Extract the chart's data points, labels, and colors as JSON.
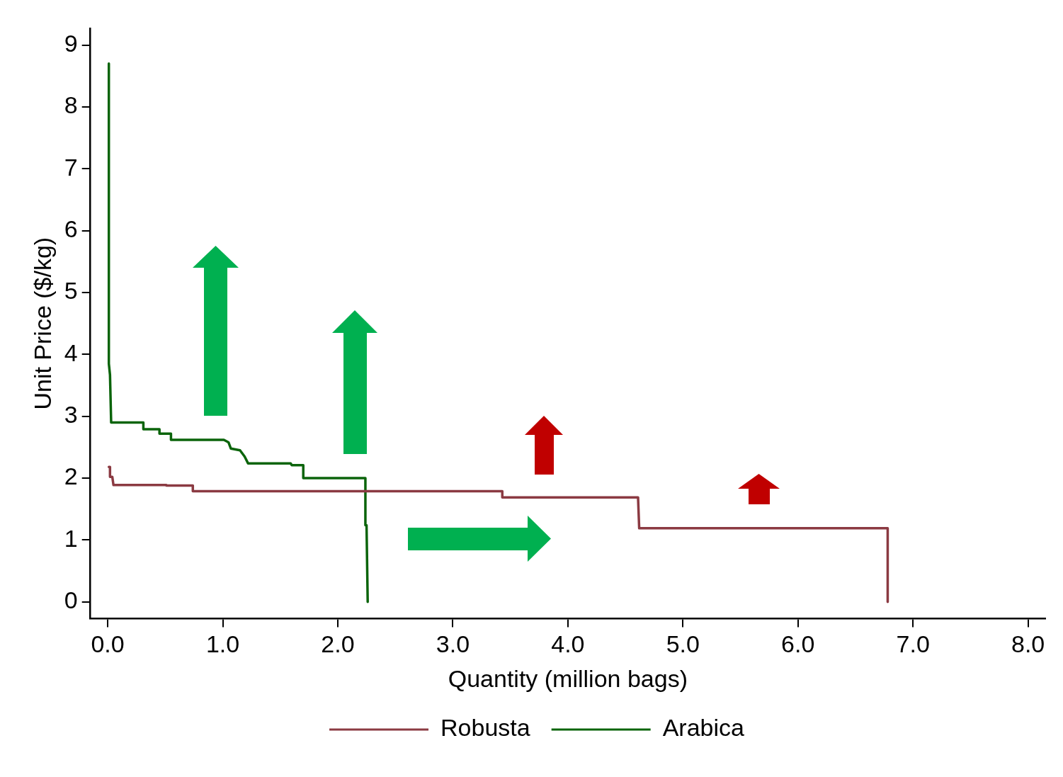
{
  "chart_data": {
    "type": "line",
    "xlabel": "Quantity (million bags)",
    "ylabel": "Unit Price ($/kg)",
    "xlim": [
      -0.15,
      8.15
    ],
    "ylim": [
      -0.27,
      9.27
    ],
    "xticks": [
      {
        "value": 0,
        "label": "0.0"
      },
      {
        "value": 1,
        "label": "1.0"
      },
      {
        "value": 2,
        "label": "2.0"
      },
      {
        "value": 3,
        "label": "3.0"
      },
      {
        "value": 4,
        "label": "4.0"
      },
      {
        "value": 5,
        "label": "5.0"
      },
      {
        "value": 6,
        "label": "6.0"
      },
      {
        "value": 7,
        "label": "7.0"
      },
      {
        "value": 8,
        "label": "8.0"
      }
    ],
    "yticks": [
      0,
      1,
      2,
      3,
      4,
      5,
      6,
      7,
      8,
      9
    ],
    "series": [
      {
        "name": "Robusta",
        "color": "#8b3a42",
        "x": [
          0.01,
          0.02,
          0.02,
          0.04,
          0.05,
          0.51,
          0.51,
          0.74,
          0.74,
          3.43,
          3.43,
          4.61,
          4.62,
          6.78,
          6.78
        ],
        "values": [
          2.18,
          2.18,
          2.02,
          2.02,
          1.89,
          1.89,
          1.88,
          1.88,
          1.79,
          1.79,
          1.69,
          1.69,
          1.19,
          1.19,
          0
        ]
      },
      {
        "name": "Arabica",
        "color": "#0b640b",
        "x": [
          0.01,
          0.01,
          0.02,
          0.03,
          0.31,
          0.31,
          0.45,
          0.45,
          0.55,
          0.55,
          1.01,
          1.05,
          1.07,
          1.15,
          1.19,
          1.22,
          1.59,
          1.6,
          1.7,
          1.7,
          2.24,
          2.24,
          2.25,
          2.26
        ],
        "values": [
          8.7,
          3.85,
          3.67,
          2.9,
          2.9,
          2.79,
          2.79,
          2.72,
          2.72,
          2.62,
          2.62,
          2.58,
          2.48,
          2.45,
          2.35,
          2.24,
          2.24,
          2.21,
          2.21,
          2.0,
          2.0,
          1.24,
          1.24,
          0
        ]
      }
    ],
    "grid": false,
    "legend": "bottom",
    "marker": "none",
    "line_style": "solid"
  }
}
